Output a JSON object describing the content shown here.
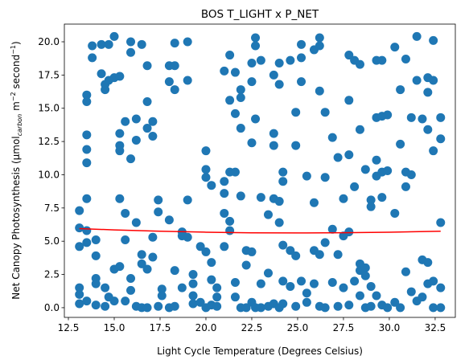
{
  "chart_data": {
    "type": "scatter",
    "title": "BOS T_LIGHT x P_NET",
    "xlabel": "Light Cycle Temperature (Degrees Celsius)",
    "ylabel": [
      "Net Canopy Photosynthesis (μmol",
      "carbon",
      " m",
      "−2",
      " second",
      "−1",
      ")"
    ],
    "xlim": [
      12.28,
      33.6
    ],
    "ylim": [
      -0.73,
      21.33
    ],
    "xticks": [
      12.5,
      {
        "value": 15,
        "label": "15.0"
      },
      17.5,
      {
        "value": 20,
        "label": "20.0"
      },
      22.5,
      {
        "value": 25,
        "label": "25.0"
      },
      27.5,
      {
        "value": 30,
        "label": "30.0"
      },
      32.5
    ],
    "yticks": [
      {
        "value": 0,
        "label": "0.0"
      },
      2.5,
      {
        "value": 5,
        "label": "5.0"
      },
      7.5,
      {
        "value": 10,
        "label": "10.0"
      },
      12.5,
      {
        "value": 15,
        "label": "15.0"
      },
      17.5,
      {
        "value": 20,
        "label": "20.0"
      }
    ],
    "series": [
      {
        "color": "#1f77b4",
        "x": [
          13.1,
          13.1,
          13.1,
          13.1,
          13.1,
          13.1,
          13.5,
          13.5,
          13.5,
          13.5,
          13.5,
          13.5,
          13.5,
          13.5,
          13.5,
          13.8,
          13.8,
          14.0,
          14.0,
          14.0,
          14.0,
          14.0,
          14.3,
          14.3,
          14.5,
          14.5,
          14.5,
          14.5,
          14.7,
          14.7,
          14.7,
          15.0,
          15.0,
          15.0,
          15.0,
          15.3,
          15.3,
          15.3,
          15.3,
          15.3,
          15.3,
          15.6,
          15.6,
          15.6,
          15.6,
          15.9,
          15.9,
          15.9,
          15.9,
          15.9,
          16.2,
          16.2,
          16.2,
          16.2,
          16.5,
          16.5,
          16.5,
          16.5,
          16.8,
          16.8,
          16.8,
          16.8,
          16.8,
          17.1,
          17.1,
          17.1,
          17.1,
          17.4,
          17.4,
          17.4,
          17.6,
          17.6,
          18.0,
          18.0,
          18.0,
          18.0,
          18.3,
          18.3,
          18.3,
          18.3,
          18.3,
          18.7,
          18.7,
          18.7,
          19.0,
          19.0,
          19.0,
          19.0,
          19.3,
          19.3,
          19.3,
          19.3,
          19.7,
          19.7,
          20.0,
          20.0,
          20.0,
          20.0,
          20.0,
          20.3,
          20.3,
          20.3,
          20.3,
          20.6,
          20.6,
          20.6,
          21.0,
          21.0,
          21.0,
          21.0,
          21.0,
          21.3,
          21.3,
          21.3,
          21.3,
          21.3,
          21.6,
          21.6,
          21.6,
          21.6,
          21.6,
          21.9,
          21.9,
          21.9,
          21.9,
          21.9,
          22.2,
          22.2,
          22.2,
          22.5,
          22.5,
          22.5,
          22.5,
          22.5,
          22.7,
          22.7,
          22.7,
          22.7,
          23.0,
          23.0,
          23.0,
          23.0,
          23.4,
          23.4,
          23.4,
          23.7,
          23.7,
          23.7,
          23.7,
          23.7,
          24.0,
          24.0,
          24.0,
          24.0,
          24.0,
          24.2,
          24.2,
          24.2,
          24.2,
          24.2,
          24.6,
          24.6,
          24.6,
          24.9,
          24.9,
          24.9,
          24.9,
          25.2,
          25.2,
          25.2,
          25.2,
          25.5,
          25.5,
          25.5,
          25.9,
          25.9,
          25.9,
          25.9,
          26.2,
          26.2,
          26.2,
          26.2,
          26.2,
          26.5,
          26.5,
          26.5,
          26.5,
          26.9,
          26.9,
          26.9,
          27.2,
          27.2,
          27.2,
          27.5,
          27.5,
          27.5,
          27.8,
          27.8,
          27.8,
          27.8,
          27.8,
          28.1,
          28.1,
          28.1,
          28.4,
          28.4,
          28.4,
          28.4,
          28.4,
          28.7,
          28.7,
          28.7,
          28.7,
          29.0,
          29.0,
          29.0,
          29.0,
          29.3,
          29.3,
          29.3,
          29.3,
          29.3,
          29.6,
          29.6,
          29.6,
          29.6,
          29.6,
          29.9,
          29.9,
          29.9,
          30.3,
          30.3,
          30.3,
          30.6,
          30.6,
          30.6,
          30.9,
          30.9,
          30.9,
          30.9,
          31.2,
          31.2,
          31.2,
          31.5,
          31.5,
          31.5,
          31.8,
          31.8,
          31.8,
          32.1,
          32.1,
          32.1,
          32.1,
          32.1,
          32.4,
          32.4,
          32.4,
          32.4,
          32.4,
          32.8,
          32.8,
          32.8,
          32.8,
          32.8
        ],
        "values": [
          7.3,
          6.0,
          4.6,
          1.5,
          1.0,
          0.3,
          16.0,
          15.5,
          13.0,
          11.9,
          10.9,
          8.2,
          5.8,
          4.9,
          0.5,
          19.7,
          18.8,
          5.1,
          3.9,
          2.2,
          1.8,
          0.2,
          19.8,
          17.6,
          16.4,
          16.8,
          1.5,
          0.1,
          19.8,
          17.1,
          0.8,
          20.4,
          17.3,
          2.9,
          0.5,
          17.4,
          13.1,
          12.2,
          11.8,
          8.2,
          3.1,
          14.0,
          7.1,
          5.1,
          0.5,
          20.0,
          19.2,
          11.2,
          2.2,
          1.3,
          14.2,
          12.6,
          6.4,
          0.1,
          19.8,
          4.0,
          3.3,
          0.0,
          18.2,
          15.5,
          13.5,
          2.9,
          0.0,
          14.0,
          12.9,
          5.3,
          3.8,
          8.1,
          7.2,
          0.1,
          1.4,
          0.9,
          18.2,
          17.0,
          6.6,
          0.0,
          19.9,
          18.2,
          16.4,
          2.8,
          0.1,
          5.7,
          5.4,
          1.5,
          20.0,
          17.1,
          8.1,
          5.3,
          2.5,
          1.8,
          0.9,
          0.3,
          4.6,
          0.4,
          11.8,
          10.4,
          9.8,
          4.2,
          0.0,
          9.2,
          3.4,
          2.1,
          0.2,
          1.5,
          0.8,
          0.1,
          17.8,
          9.5,
          8.6,
          7.1,
          4.6,
          19.0,
          15.6,
          10.2,
          6.5,
          5.8,
          17.7,
          14.6,
          10.2,
          1.9,
          0.8,
          16.4,
          15.8,
          13.5,
          8.4,
          0.0,
          4.3,
          3.2,
          0.0,
          18.4,
          17.0,
          12.4,
          4.2,
          0.4,
          20.3,
          19.7,
          14.2,
          0.0,
          18.6,
          8.3,
          1.8,
          0.0,
          7.0,
          2.6,
          0.1,
          17.5,
          13.1,
          12.2,
          8.2,
          0.3,
          18.4,
          16.8,
          8.0,
          6.4,
          0.0,
          10.2,
          9.5,
          4.7,
          2.0,
          0.3,
          18.6,
          4.3,
          1.6,
          14.7,
          12.2,
          3.9,
          0.1,
          19.8,
          18.8,
          17.0,
          2.0,
          9.9,
          1.1,
          0.4,
          19.4,
          7.9,
          4.3,
          1.8,
          20.3,
          19.7,
          16.3,
          4.0,
          0.1,
          14.7,
          9.8,
          4.9,
          0.0,
          12.8,
          5.9,
          1.9,
          11.3,
          4.0,
          0.1,
          8.2,
          5.4,
          1.5,
          19.0,
          15.6,
          11.5,
          5.7,
          0.2,
          18.6,
          9.1,
          2.0,
          18.3,
          13.4,
          3.3,
          2.8,
          0.9,
          10.4,
          3.0,
          2.4,
          0.0,
          8.1,
          7.6,
          1.6,
          0.1,
          18.6,
          14.3,
          11.1,
          9.9,
          0.9,
          18.6,
          14.4,
          10.2,
          8.3,
          0.2,
          14.5,
          10.3,
          0.0,
          19.6,
          7.1,
          0.4,
          16.4,
          12.3,
          0.0,
          18.7,
          10.2,
          9.1,
          2.7,
          14.3,
          10.0,
          1.2,
          20.4,
          17.1,
          0.5,
          14.2,
          3.6,
          0.8,
          17.3,
          16.2,
          13.4,
          3.4,
          1.8,
          20.1,
          17.1,
          11.8,
          2.0,
          0.0,
          14.3,
          12.7,
          6.4,
          1.5,
          0.0
        ]
      }
    ],
    "fit": {
      "color": "#ff0000",
      "x": [
        13.1,
        15,
        17.5,
        20,
        22.5,
        25,
        27.5,
        30,
        32.8
      ],
      "values": [
        5.95,
        5.85,
        5.75,
        5.68,
        5.63,
        5.62,
        5.64,
        5.68,
        5.75
      ]
    }
  }
}
